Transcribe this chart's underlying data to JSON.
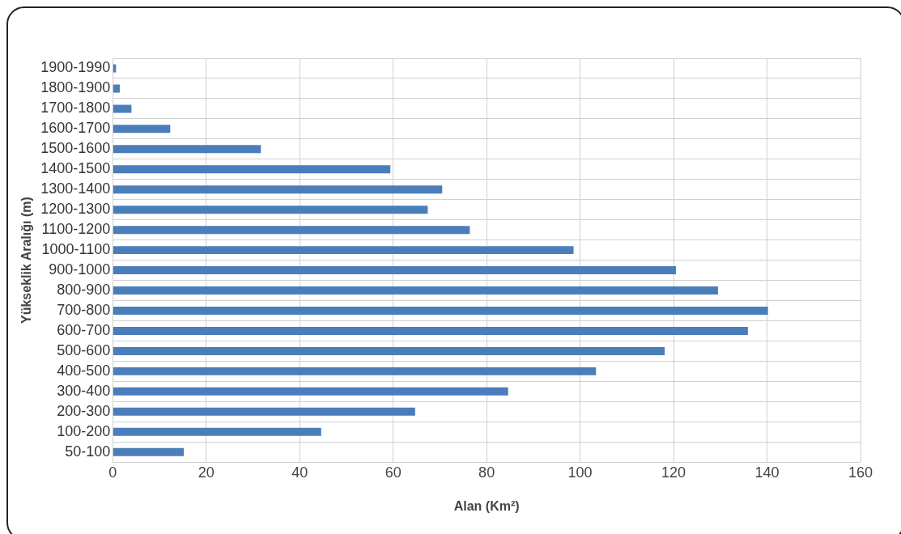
{
  "chart_data": {
    "type": "bar",
    "orientation": "horizontal",
    "xlabel": "Alan (Km²)",
    "ylabel": "Yükseklik Aralığı (m)",
    "categories": [
      "1900-1990",
      "1800-1900",
      "1700-1800",
      "1600-1700",
      "1500-1600",
      "1400-1500",
      "1300-1400",
      "1200-1300",
      "1100-1200",
      "1000-1100",
      "900-1000",
      "800-900",
      "700-800",
      "600-700",
      "500-600",
      "400-500",
      "300-400",
      "200-300",
      "100-200",
      "50-100"
    ],
    "values": [
      0.7,
      1.5,
      4,
      12.3,
      31.7,
      59.4,
      70.5,
      67.4,
      76.4,
      98.6,
      120.5,
      129.5,
      140.2,
      135.9,
      118.1,
      103.4,
      84.6,
      64.7,
      44.6,
      15.2
    ],
    "color": "#4a7ebb",
    "xlim": [
      0,
      160
    ],
    "xticks": [
      0,
      20,
      40,
      60,
      80,
      100,
      120,
      140,
      160
    ],
    "grid": true
  }
}
